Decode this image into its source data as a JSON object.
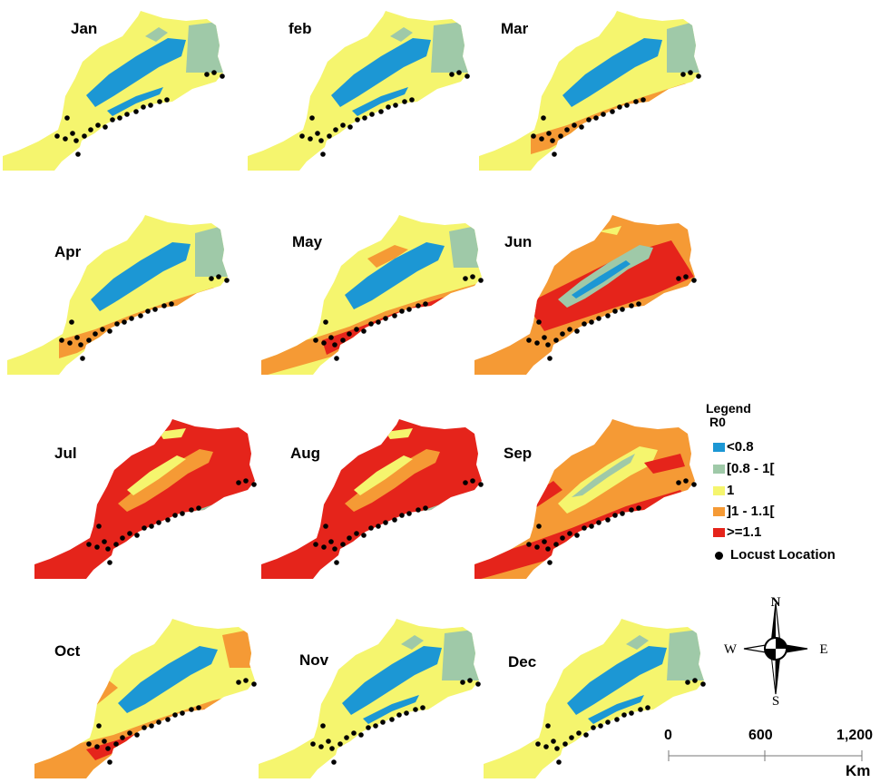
{
  "months": [
    {
      "label": "Jan",
      "palette": "winter"
    },
    {
      "label": "feb",
      "palette": "winter"
    },
    {
      "label": "Mar",
      "palette": "spring"
    },
    {
      "label": "Apr",
      "palette": "spring"
    },
    {
      "label": "May",
      "palette": "may"
    },
    {
      "label": "Jun",
      "palette": "june"
    },
    {
      "label": "Jul",
      "palette": "hot"
    },
    {
      "label": "Aug",
      "palette": "hot"
    },
    {
      "label": "Sep",
      "palette": "sept"
    },
    {
      "label": "Oct",
      "palette": "oct"
    },
    {
      "label": "Nov",
      "palette": "winter"
    },
    {
      "label": "Dec",
      "palette": "winter"
    }
  ],
  "legend": {
    "title": "Legend",
    "subtitle": "R0",
    "items": [
      {
        "label": "<0.8",
        "color": "#1c97d4"
      },
      {
        "label": "[0.8 - 1[",
        "color": "#9fc9a8"
      },
      {
        "label": "1",
        "color": "#f5f56e"
      },
      {
        "label": "]1 - 1.1[",
        "color": "#f59a35"
      },
      {
        "label": ">=1.1",
        "color": "#e5241b"
      }
    ],
    "locust_label": "Locust Location"
  },
  "compass": {
    "n": "N",
    "s": "S",
    "e": "E",
    "w": "W"
  },
  "scale": {
    "ticks": [
      "0",
      "600",
      "1,200"
    ],
    "unit": "Km"
  }
}
